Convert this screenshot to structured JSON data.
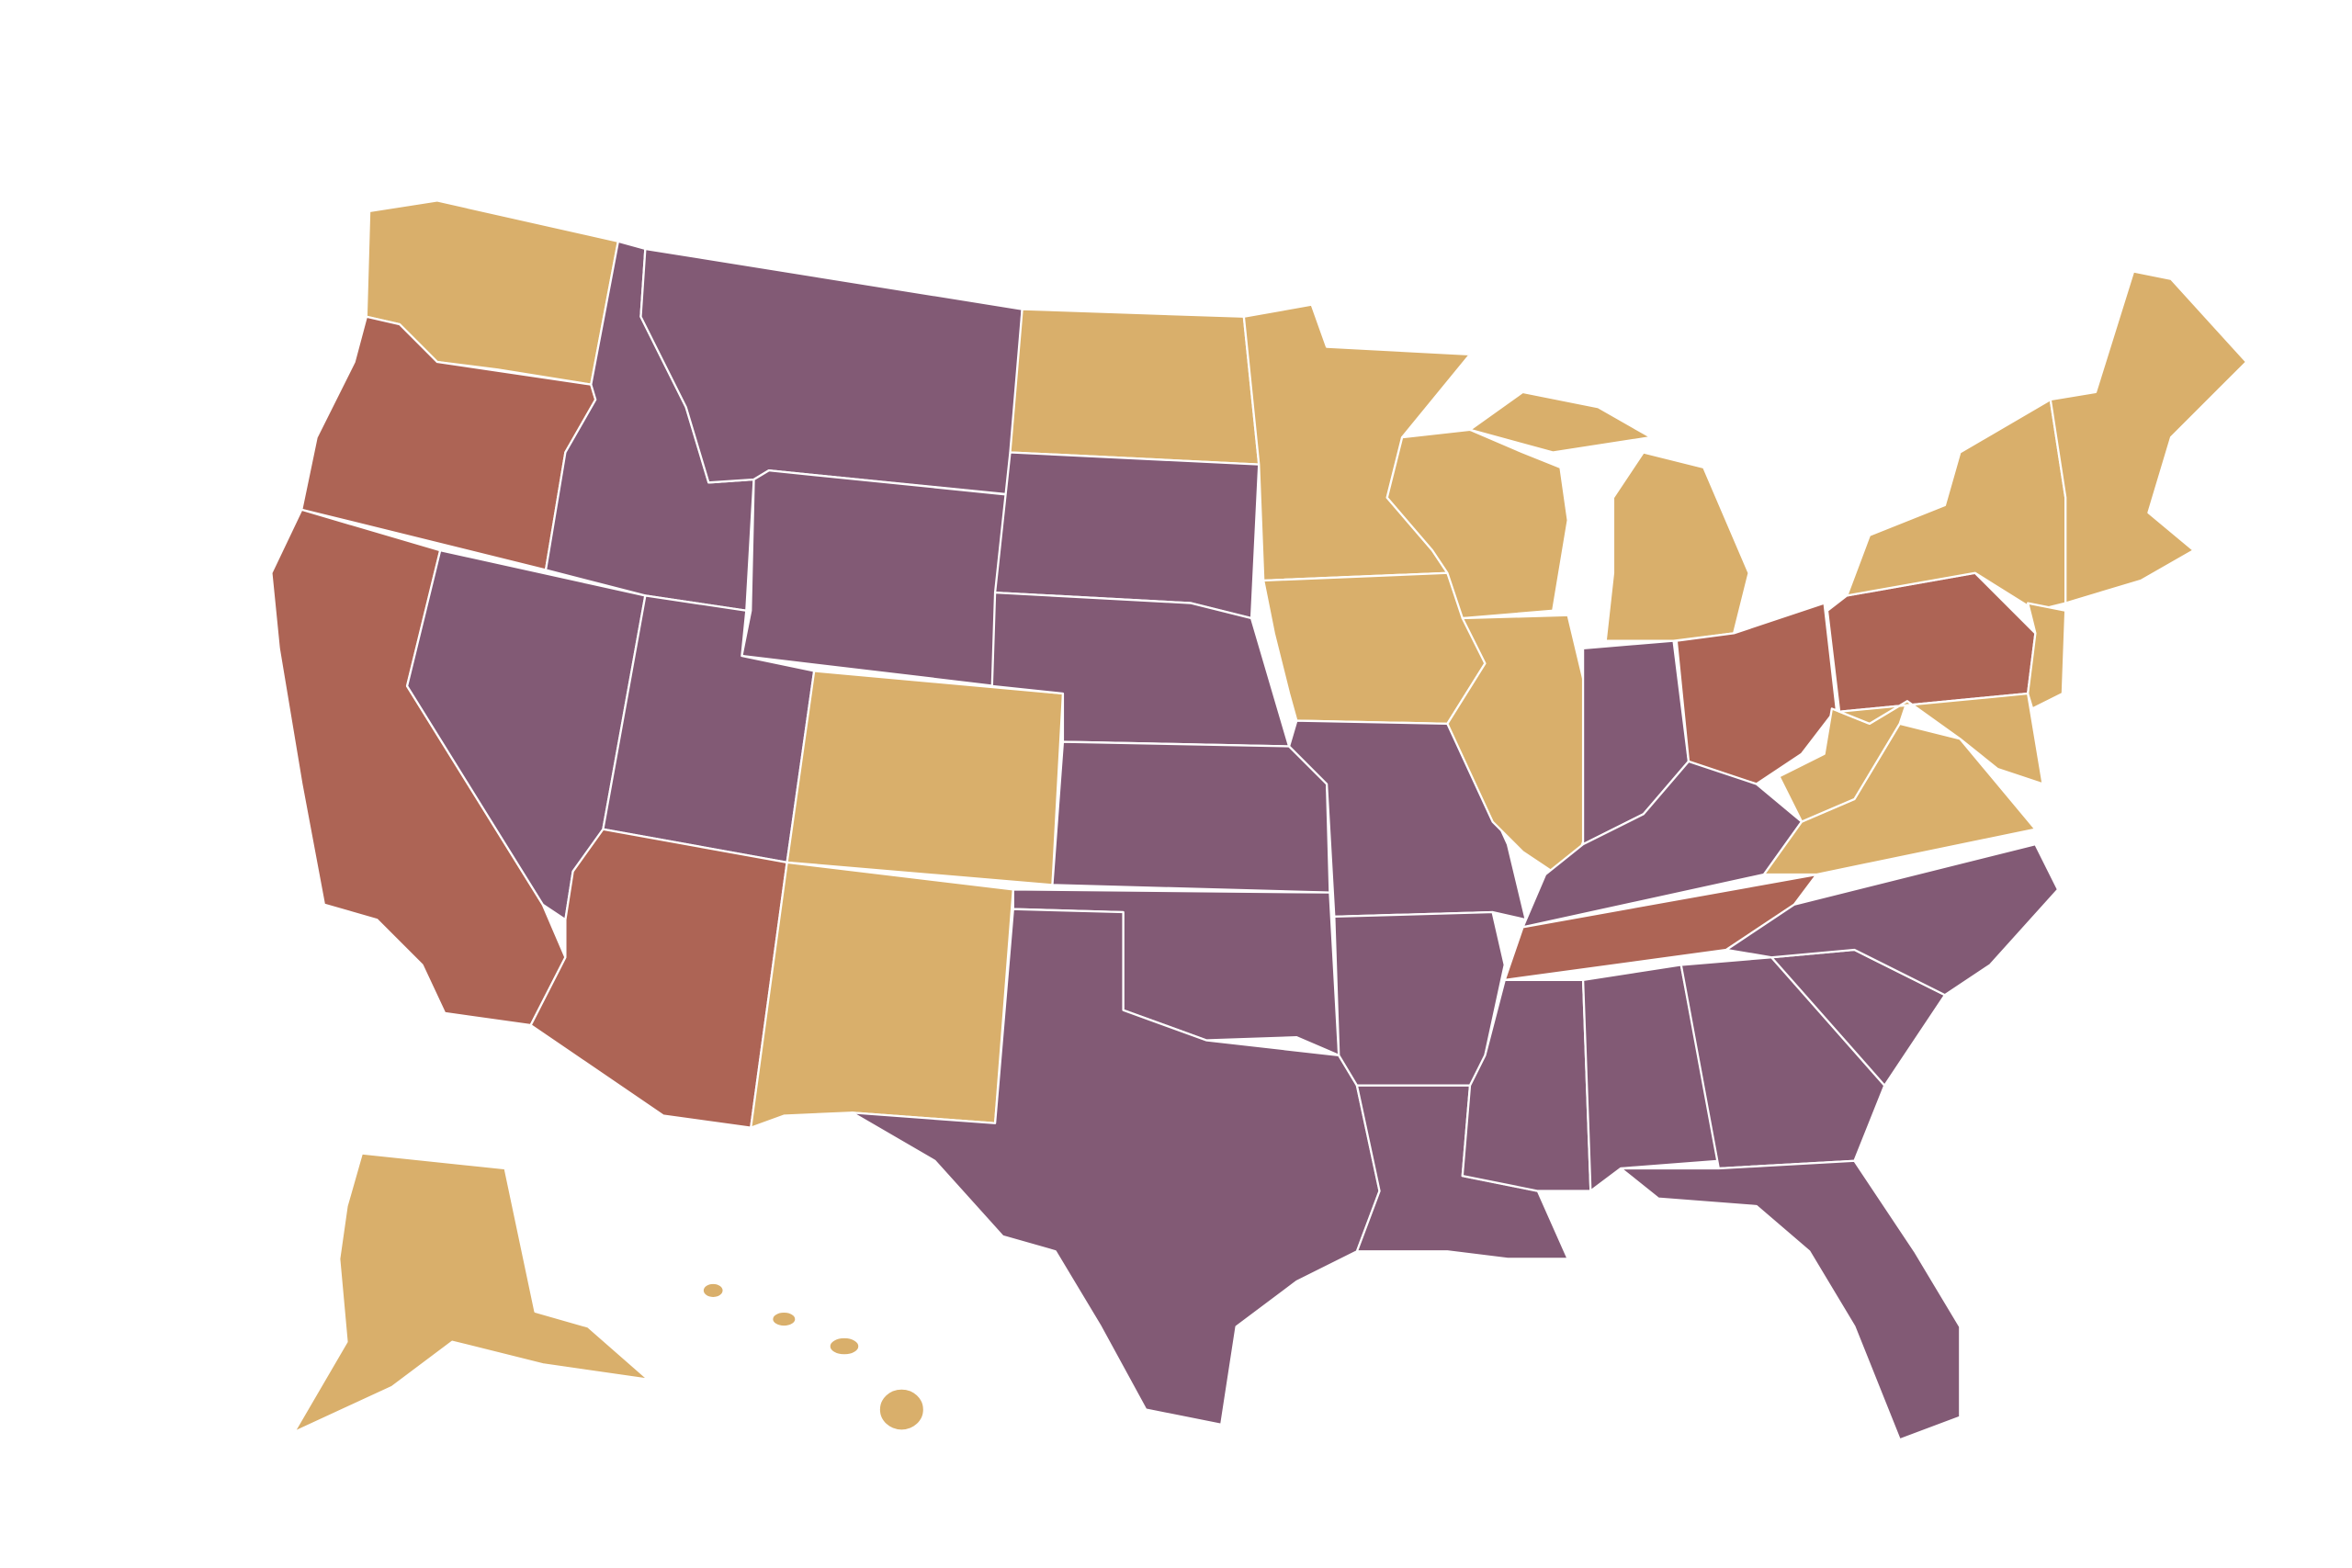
{
  "map": {
    "regions": [
      {
        "color": "#d9af6b"
      },
      {
        "color": "#ad6455"
      },
      {
        "color": "#ad6455"
      },
      {
        "color": "#825a75"
      },
      {
        "color": "#825a75"
      },
      {
        "color": "#825a75"
      },
      {
        "color": "#825a75"
      },
      {
        "color": "#825a75"
      },
      {
        "color": "#ad6455"
      },
      {
        "color": "#d9af6b"
      },
      {
        "color": "#d9af6b"
      },
      {
        "color": "#d9af6b"
      },
      {
        "color": "#825a75"
      },
      {
        "color": "#825a75"
      },
      {
        "color": "#825a75"
      },
      {
        "color": "#825a75"
      },
      {
        "color": "#825a75"
      },
      {
        "color": "#d9af6b"
      },
      {
        "color": "#d9af6b"
      },
      {
        "color": "#825a75"
      },
      {
        "color": "#825a75"
      },
      {
        "color": "#825a75"
      },
      {
        "color": "#d9af6b"
      },
      {
        "color": "#d9af6b"
      },
      {
        "color": "#d9af6b"
      },
      {
        "color": "#d9af6b"
      },
      {
        "color": "#825a75"
      },
      {
        "color": "#ad6455"
      },
      {
        "color": "#825a75"
      },
      {
        "color": "#ad6455"
      },
      {
        "color": "#825a75"
      },
      {
        "color": "#825a75"
      },
      {
        "color": "#825a75"
      },
      {
        "color": "#825a75"
      },
      {
        "color": "#825a75"
      },
      {
        "color": "#825a75"
      },
      {
        "color": "#d9af6b"
      },
      {
        "color": "#d9af6b"
      },
      {
        "color": "#ad6455"
      },
      {
        "color": "#d9af6b"
      },
      {
        "color": "#d9af6b"
      },
      {
        "color": "#d9af6b"
      },
      {
        "color": "#d9af6b"
      },
      {
        "color": "#d9af6b"
      },
      {
        "color": "#d9af6b"
      },
      {
        "color": "#d9af6b"
      },
      {
        "color": "#d9af6b"
      },
      {
        "color": "#d9af6b"
      }
    ]
  }
}
